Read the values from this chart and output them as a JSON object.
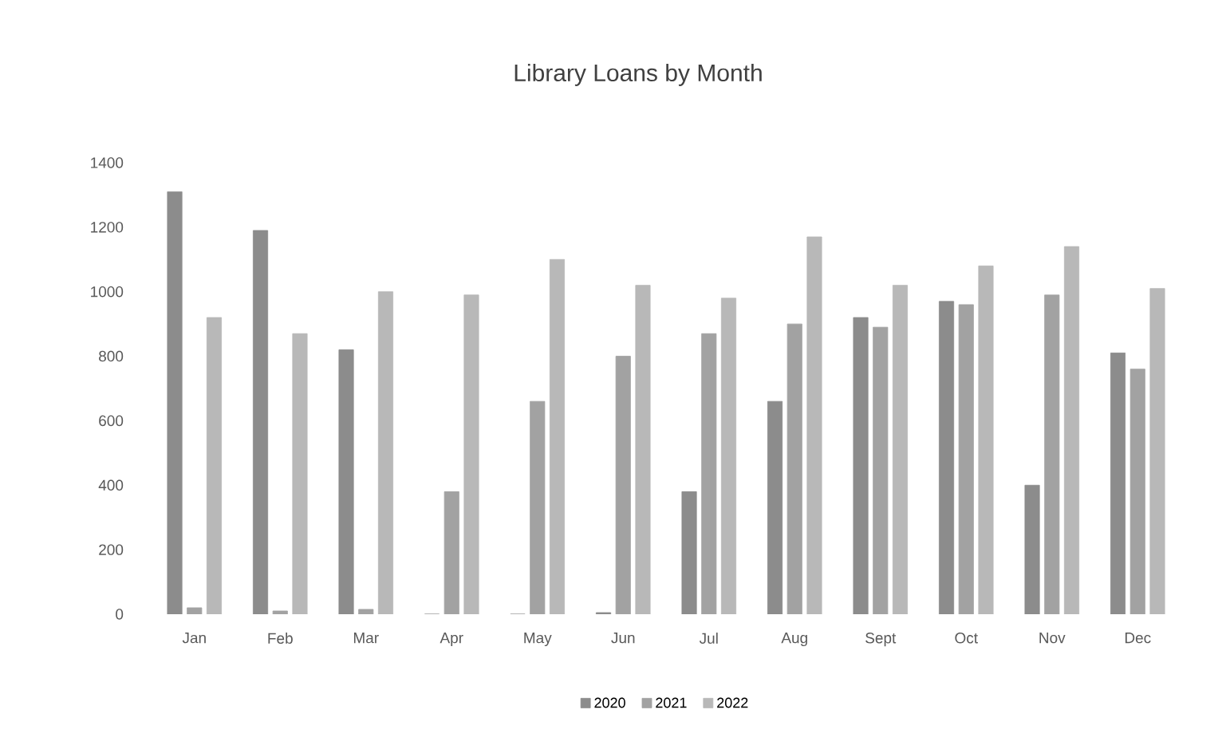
{
  "chart_data": {
    "type": "bar",
    "title": "Library Loans by Month",
    "categories": [
      "Jan",
      "Feb",
      "Mar",
      "Apr",
      "May",
      "Jun",
      "Jul",
      "Aug",
      "Sept",
      "Oct",
      "Nov",
      "Dec"
    ],
    "series": [
      {
        "name": "2020",
        "color": "#8c8c8c",
        "values": [
          1310,
          1190,
          820,
          0,
          0,
          5,
          380,
          660,
          920,
          970,
          400,
          810
        ]
      },
      {
        "name": "2021",
        "color": "#a2a2a2",
        "values": [
          20,
          10,
          15,
          380,
          660,
          800,
          870,
          900,
          890,
          960,
          990,
          760
        ]
      },
      {
        "name": "2022",
        "color": "#b8b8b8",
        "values": [
          920,
          870,
          1000,
          990,
          1100,
          1020,
          980,
          1170,
          1020,
          1080,
          1140,
          1010
        ]
      }
    ],
    "ylim": [
      0,
      1400
    ],
    "yticks": [
      0,
      200,
      400,
      600,
      800,
      1000,
      1200,
      1400
    ],
    "grid": false,
    "legend": "bottom"
  }
}
